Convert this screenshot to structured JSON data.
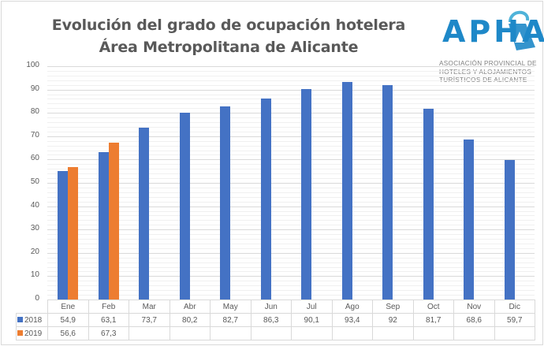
{
  "title": {
    "line1": "Evolución del grado de ocupación hotelera",
    "line2": "Área Metropolitana de Alicante"
  },
  "logo": {
    "name": "APHA",
    "subtitle_lines": [
      "ASOCIACIÓN PROVINCIAL DE",
      "HOTELES Y ALOJAMIENTOS",
      "TURÍSTICOS DE ALICANTE"
    ],
    "color": "#1e88c8"
  },
  "chart_data": {
    "type": "bar",
    "title": "Evolución del grado de ocupación hotelera Área Metropolitana de Alicante",
    "xlabel": "",
    "ylabel": "",
    "ylim": [
      0,
      100
    ],
    "yticks": [
      0,
      10,
      20,
      30,
      40,
      50,
      60,
      70,
      80,
      90,
      100
    ],
    "grid": true,
    "legend_position": "data-table",
    "categories": [
      "Ene",
      "Feb",
      "Mar",
      "Abr",
      "May",
      "Jun",
      "Jul",
      "Ago",
      "Sep",
      "Oct",
      "Nov",
      "Dic"
    ],
    "series": [
      {
        "name": "2018",
        "color": "#4472c4",
        "values": [
          54.9,
          63.1,
          73.7,
          80.2,
          82.7,
          86.3,
          90.1,
          93.4,
          92,
          81.7,
          68.6,
          59.7
        ],
        "labels": [
          "54,9",
          "63,1",
          "73,7",
          "80,2",
          "82,7",
          "86,3",
          "90,1",
          "93,4",
          "92",
          "81,7",
          "68,6",
          "59,7"
        ]
      },
      {
        "name": "2019",
        "color": "#ed7d31",
        "values": [
          56.6,
          67.3,
          null,
          null,
          null,
          null,
          null,
          null,
          null,
          null,
          null,
          null
        ],
        "labels": [
          "56,6",
          "67,3",
          "",
          "",
          "",
          "",
          "",
          "",
          "",
          "",
          "",
          ""
        ]
      }
    ]
  }
}
